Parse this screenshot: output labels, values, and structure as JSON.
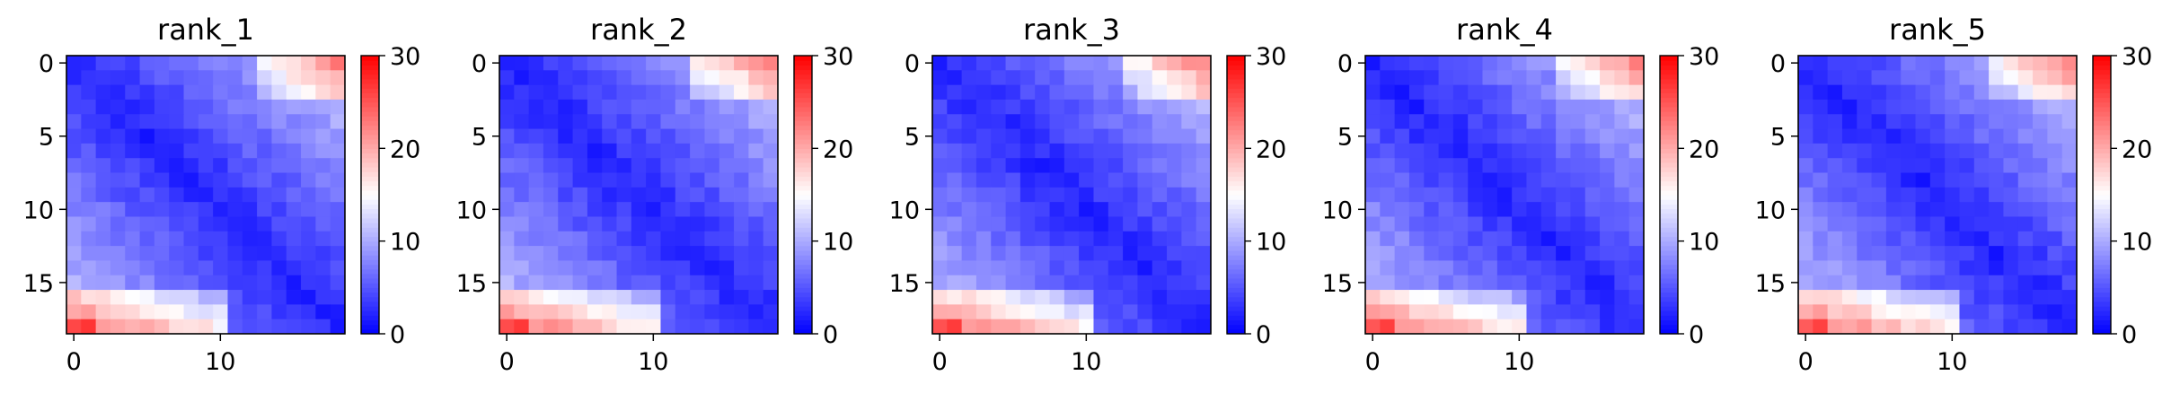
{
  "chart_data": [
    {
      "type": "heatmap",
      "title": "rank_1",
      "n": 19,
      "matrix_seed": 1,
      "xticks": [
        0,
        10
      ],
      "yticks": [
        0,
        5,
        10,
        15
      ],
      "colorbar": {
        "colormap": "bwr",
        "range": [
          0,
          30
        ],
        "ticks": [
          0,
          10,
          20,
          30
        ]
      }
    },
    {
      "type": "heatmap",
      "title": "rank_2",
      "n": 19,
      "matrix_seed": 2,
      "xticks": [
        0,
        10
      ],
      "yticks": [
        0,
        5,
        10,
        15
      ],
      "colorbar": {
        "colormap": "bwr",
        "range": [
          0,
          30
        ],
        "ticks": [
          0,
          10,
          20,
          30
        ]
      }
    },
    {
      "type": "heatmap",
      "title": "rank_3",
      "n": 19,
      "matrix_seed": 3,
      "xticks": [
        0,
        10
      ],
      "yticks": [
        0,
        5,
        10,
        15
      ],
      "colorbar": {
        "colormap": "bwr",
        "range": [
          0,
          30
        ],
        "ticks": [
          0,
          10,
          20,
          30
        ]
      }
    },
    {
      "type": "heatmap",
      "title": "rank_4",
      "n": 19,
      "matrix_seed": 4,
      "xticks": [
        0,
        10
      ],
      "yticks": [
        0,
        5,
        10,
        15
      ],
      "colorbar": {
        "colormap": "bwr",
        "range": [
          0,
          30
        ],
        "ticks": [
          0,
          10,
          20,
          30
        ]
      }
    },
    {
      "type": "heatmap",
      "title": "rank_5",
      "n": 19,
      "matrix_seed": 5,
      "xticks": [
        0,
        10
      ],
      "yticks": [
        0,
        5,
        10,
        15
      ],
      "colorbar": {
        "colormap": "bwr",
        "range": [
          0,
          30
        ],
        "ticks": [
          0,
          10,
          20,
          30
        ]
      }
    }
  ]
}
